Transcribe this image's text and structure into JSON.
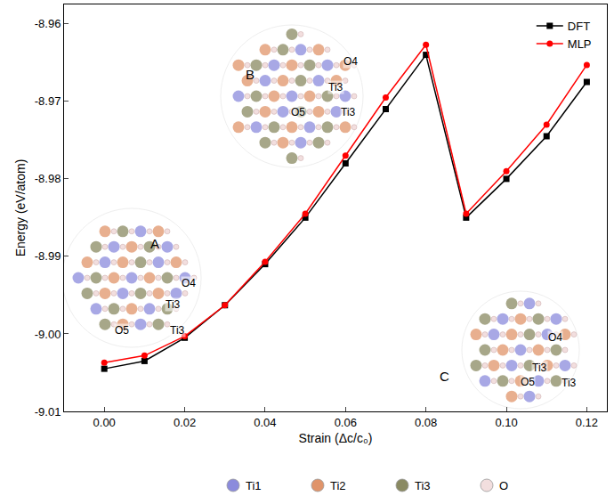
{
  "chart_data": {
    "type": "line",
    "x_label": "Strain (Δc/c₀)",
    "y_label": "Energy (eV/atom)",
    "x": [
      0,
      0.01,
      0.02,
      0.03,
      0.04,
      0.05,
      0.06,
      0.07,
      0.08,
      0.09,
      0.1,
      0.11,
      0.12
    ],
    "series": [
      {
        "name": "DFT",
        "color": "#000000",
        "marker": "square",
        "values": [
          -9.0045,
          -9.0035,
          -9.0005,
          -8.9963,
          -8.991,
          -8.985,
          -8.978,
          -8.971,
          -8.964,
          -8.985,
          -8.98,
          -8.9745,
          -8.9675
        ]
      },
      {
        "name": "MLP",
        "color": "#ff0000",
        "marker": "circle",
        "values": [
          -9.0037,
          -9.0028,
          -9.0003,
          -8.9963,
          -8.9907,
          -8.9845,
          -8.977,
          -8.9695,
          -8.9627,
          -8.9845,
          -8.979,
          -8.973,
          -8.9653
        ]
      }
    ],
    "xlim": [
      -0.01,
      0.125
    ],
    "xticks": [
      {
        "value": 0,
        "label": "0.00"
      },
      0.02,
      0.04,
      0.06,
      0.08,
      {
        "value": 0.1,
        "label": "0.10"
      },
      0.12
    ],
    "ylim": [
      -9.01,
      -8.9575
    ],
    "yticks": [
      -9.01,
      {
        "value": -9,
        "label": "-9.00"
      },
      -8.99,
      -8.98,
      -8.97,
      -8.96
    ],
    "grid": false,
    "legend": "upper right",
    "annotations": [
      {
        "text": "A",
        "x": 0.0126,
        "y": -8.9883
      },
      {
        "text": "O4",
        "x": 0.0209,
        "y": -8.9934
      },
      {
        "text": "Ti3",
        "x": 0.0171,
        "y": -8.9962
      },
      {
        "text": "O5",
        "x": 0.0043,
        "y": -8.9996
      },
      {
        "text": "Ti3",
        "x": 0.0182,
        "y": -8.9996
      },
      {
        "text": "B",
        "x": 0.0362,
        "y": -8.9665
      },
      {
        "text": "O4",
        "x": 0.0613,
        "y": -8.9649
      },
      {
        "text": "Ti3",
        "x": 0.0575,
        "y": -8.9682
      },
      {
        "text": "O5",
        "x": 0.0483,
        "y": -8.9714
      },
      {
        "text": "Ti3",
        "x": 0.0607,
        "y": -8.9714
      },
      {
        "text": "C",
        "x": 0.0847,
        "y": -9.0055
      },
      {
        "text": "O4",
        "x": 0.1121,
        "y": -9.0005
      },
      {
        "text": "Ti3",
        "x": 0.1083,
        "y": -9.0044
      },
      {
        "text": "O5",
        "x": 0.1052,
        "y": -9.0062
      },
      {
        "text": "Ti3",
        "x": 0.1155,
        "y": -9.0063
      }
    ],
    "atom_legend": [
      {
        "name": "Ti1",
        "color": "#8b8bdc"
      },
      {
        "name": "Ti2",
        "color": "#e0946a"
      },
      {
        "name": "Ti3",
        "color": "#8a8a62"
      },
      {
        "name": "O",
        "color": "#f2dede"
      }
    ]
  }
}
